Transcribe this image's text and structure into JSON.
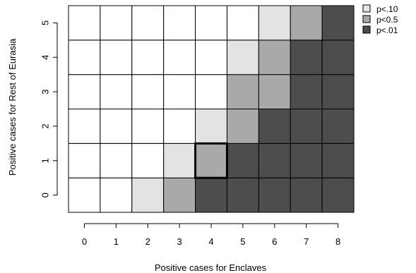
{
  "chart_data": {
    "type": "heatmap",
    "xlabel": "Positive cases for Enclaves",
    "ylabel": "Positive cases for Rest of Eurasia",
    "x_ticks": [
      0,
      1,
      2,
      3,
      4,
      5,
      6,
      7,
      8
    ],
    "y_ticks": [
      0,
      1,
      2,
      3,
      4,
      5
    ],
    "xlim": [
      0,
      8
    ],
    "ylim": [
      0,
      5
    ],
    "legend": {
      "position": "top-right",
      "entries": [
        {
          "key": "p10",
          "label": "p<.10",
          "color": "#e3e3e3"
        },
        {
          "key": "p05",
          "label": "p<0.5",
          "color": "#a9a9a9"
        },
        {
          "key": "p01",
          "label": "p<.01",
          "color": "#4d4d4d"
        }
      ]
    },
    "colors": {
      "none": "#ffffff",
      "p10": "#e3e3e3",
      "p05": "#a9a9a9",
      "p01": "#4d4d4d"
    },
    "rows": [
      {
        "y": 0,
        "cells": [
          "none",
          "none",
          "p10",
          "p05",
          "p01",
          "p01",
          "p01",
          "p01",
          "p01"
        ]
      },
      {
        "y": 1,
        "cells": [
          "none",
          "none",
          "none",
          "p10",
          "p05",
          "p01",
          "p01",
          "p01",
          "p01"
        ]
      },
      {
        "y": 2,
        "cells": [
          "none",
          "none",
          "none",
          "none",
          "p10",
          "p05",
          "p01",
          "p01",
          "p01"
        ]
      },
      {
        "y": 3,
        "cells": [
          "none",
          "none",
          "none",
          "none",
          "none",
          "p05",
          "p05",
          "p01",
          "p01"
        ]
      },
      {
        "y": 4,
        "cells": [
          "none",
          "none",
          "none",
          "none",
          "none",
          "p10",
          "p05",
          "p01",
          "p01"
        ]
      },
      {
        "y": 5,
        "cells": [
          "none",
          "none",
          "none",
          "none",
          "none",
          "none",
          "p10",
          "p05",
          "p01"
        ]
      }
    ],
    "highlighted_cell": {
      "x": 4,
      "y": 1
    }
  }
}
